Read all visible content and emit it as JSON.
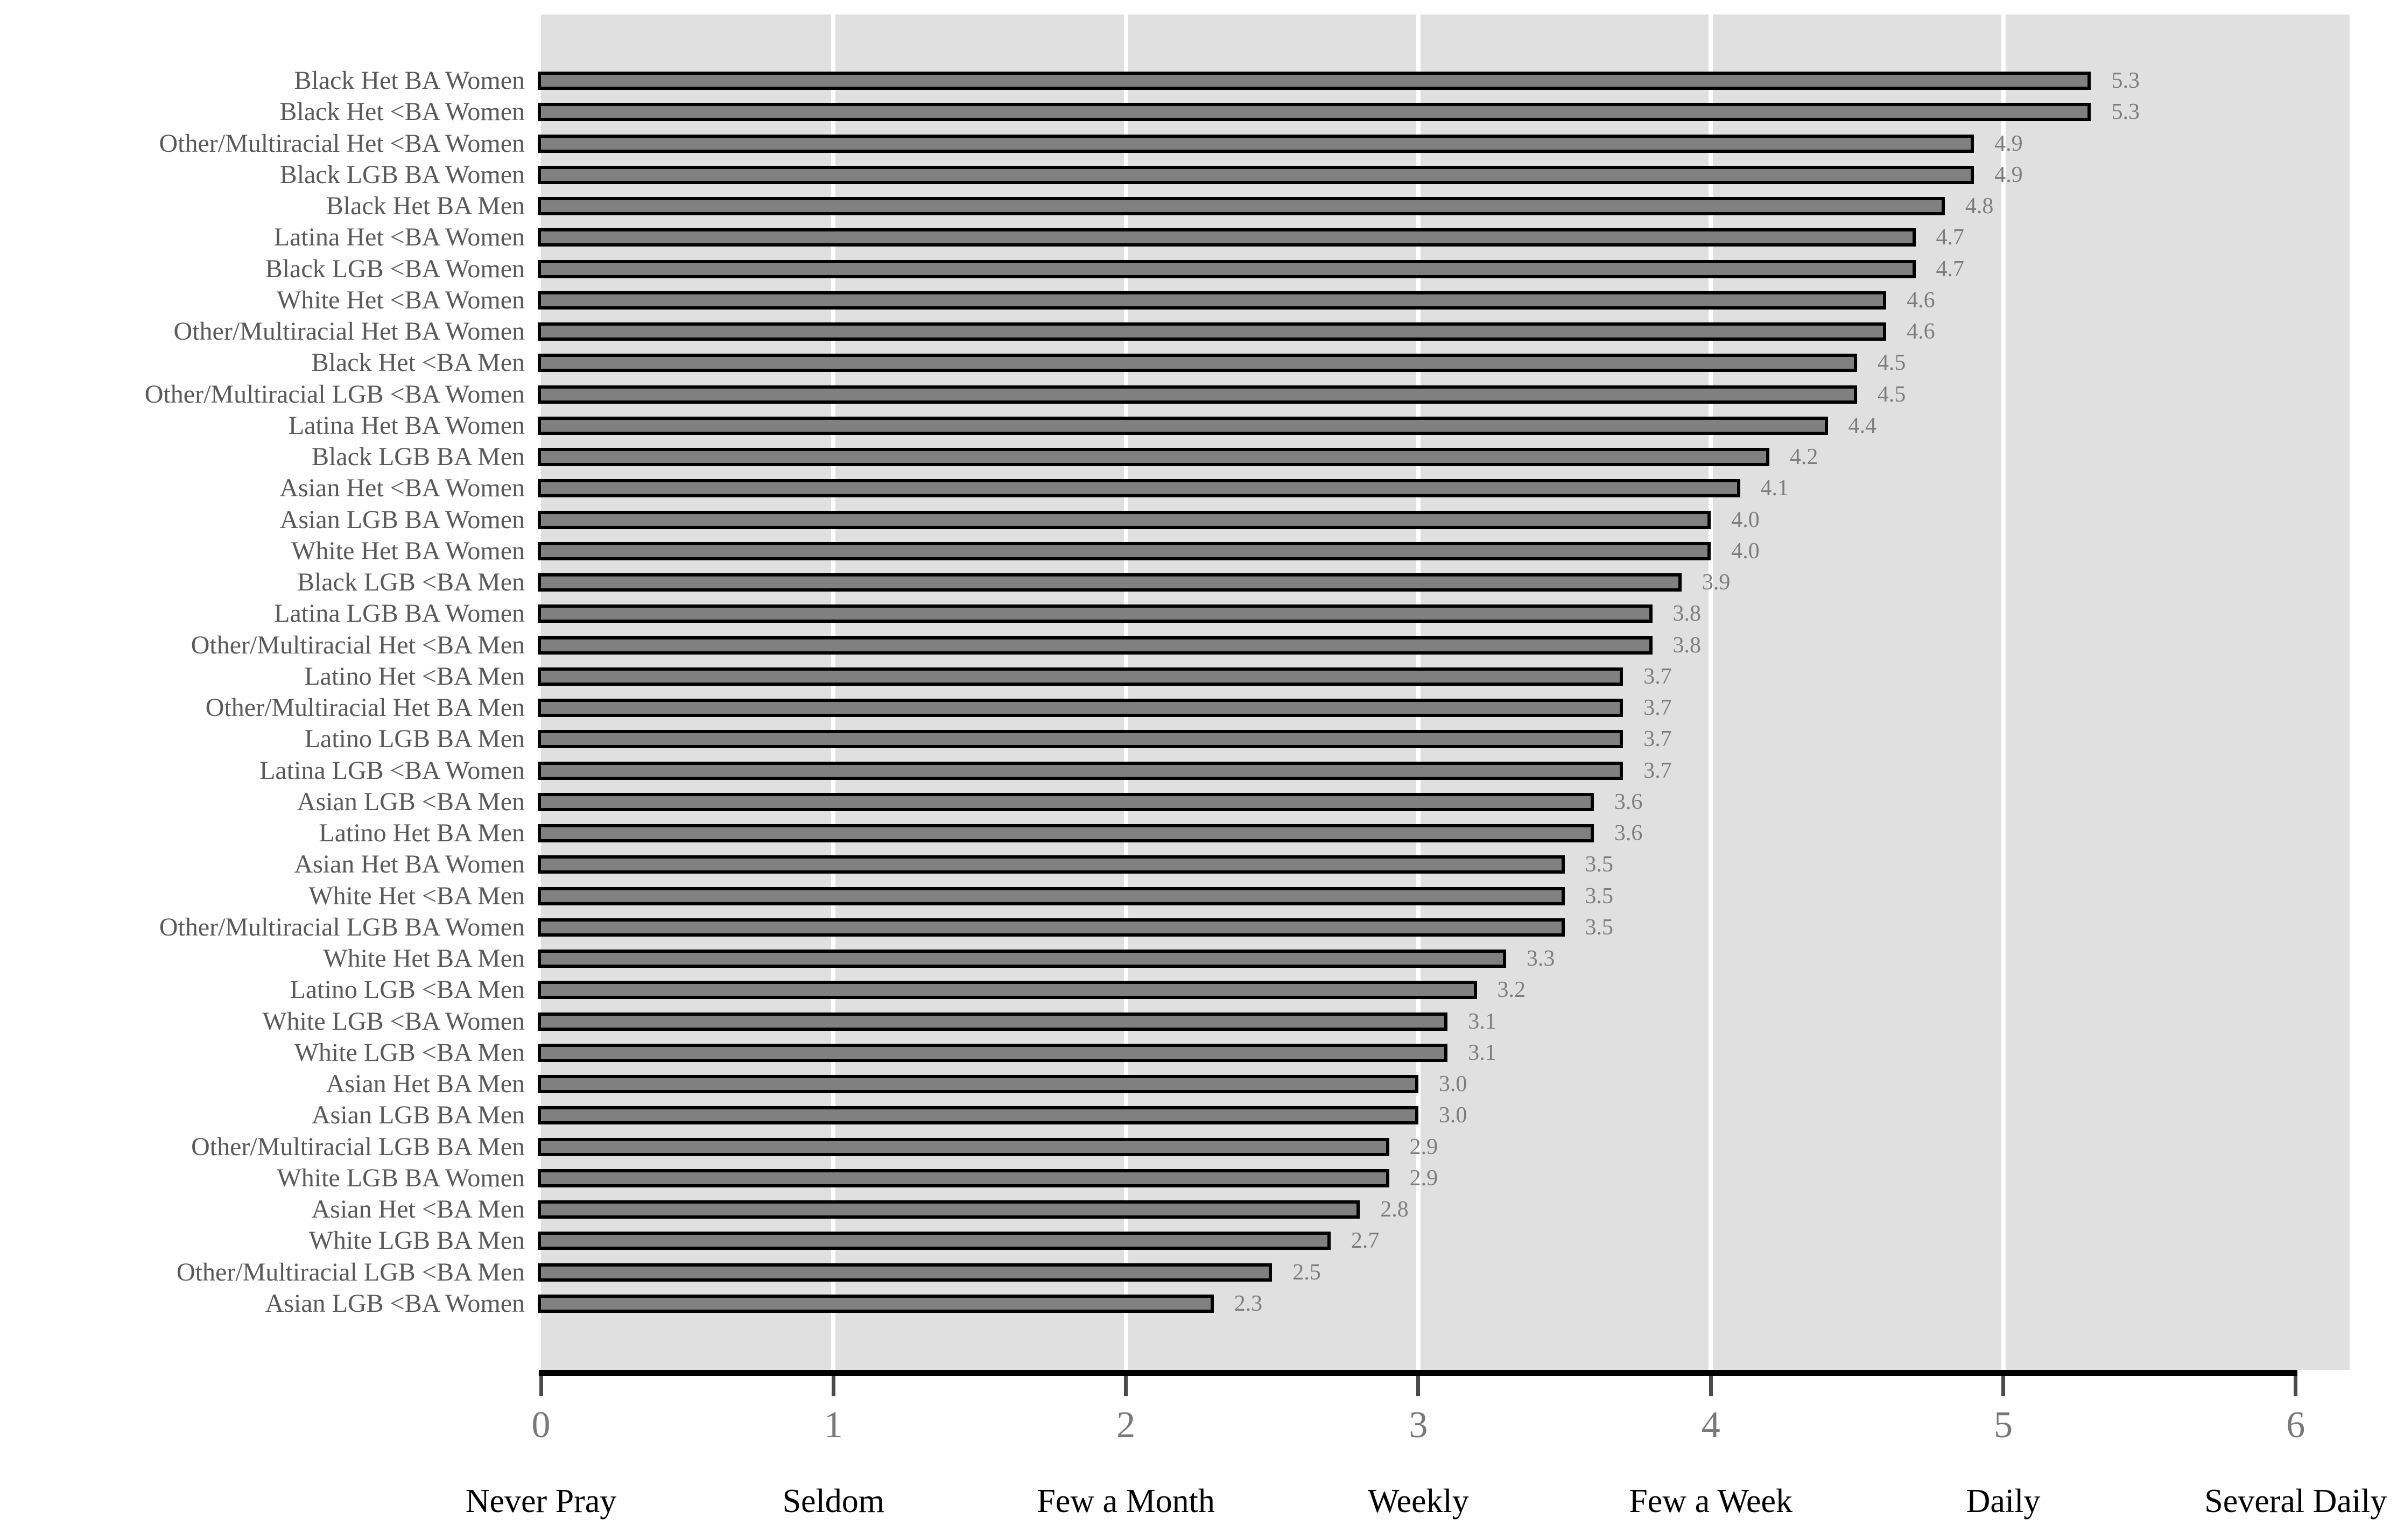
{
  "chart_data": {
    "type": "bar",
    "orientation": "horizontal",
    "title": "",
    "xlabel": "",
    "ylabel": "",
    "xlim": [
      0,
      6.19
    ],
    "grid": "vertical-white-gridlines",
    "gridlines_at": [
      1,
      2,
      3,
      4,
      5
    ],
    "categories": [
      "Black Het BA Women",
      "Black Het <BA Women",
      "Other/Multiracial Het <BA Women",
      "Black LGB BA Women",
      "Black Het BA Men",
      "Latina Het <BA Women",
      "Black LGB <BA Women",
      "White Het <BA Women",
      "Other/Multiracial Het BA Women",
      "Black Het <BA Men",
      "Other/Multiracial LGB <BA Women",
      "Latina Het BA Women",
      "Black LGB BA Men",
      "Asian Het <BA Women",
      "Asian LGB BA Women",
      "White Het BA Women",
      "Black LGB <BA Men",
      "Latina LGB BA Women",
      "Other/Multiracial Het <BA Men",
      "Latino Het <BA Men",
      "Other/Multiracial Het BA Men",
      "Latino LGB BA Men",
      "Latina LGB <BA Women",
      "Asian LGB <BA Men",
      "Latino Het BA Men",
      "Asian Het BA Women",
      "White Het <BA Men",
      "Other/Multiracial LGB BA Women",
      "White Het BA Men",
      "Latino LGB <BA Men",
      "White LGB <BA Women",
      "White LGB <BA Men",
      "Asian Het BA Men",
      "Asian LGB BA Men",
      "Other/Multiracial LGB BA Men",
      "White LGB BA Women",
      "Asian Het <BA Men",
      "White LGB BA Men",
      "Other/Multiracial LGB <BA Men",
      "Asian LGB <BA Women"
    ],
    "values": [
      5.3,
      5.3,
      4.9,
      4.9,
      4.8,
      4.7,
      4.7,
      4.6,
      4.6,
      4.5,
      4.5,
      4.4,
      4.2,
      4.1,
      4.0,
      4.0,
      3.9,
      3.8,
      3.8,
      3.7,
      3.7,
      3.7,
      3.7,
      3.6,
      3.6,
      3.5,
      3.5,
      3.5,
      3.3,
      3.2,
      3.1,
      3.1,
      3.0,
      3.0,
      2.9,
      2.9,
      2.8,
      2.7,
      2.5,
      2.3
    ],
    "value_labels": [
      "5.3",
      "5.3",
      "4.9",
      "4.9",
      "4.8",
      "4.7",
      "4.7",
      "4.6",
      "4.6",
      "4.5",
      "4.5",
      "4.4",
      "4.2",
      "4.1",
      "4.0",
      "4.0",
      "3.9",
      "3.8",
      "3.8",
      "3.7",
      "3.7",
      "3.7",
      "3.7",
      "3.6",
      "3.6",
      "3.5",
      "3.5",
      "3.5",
      "3.3",
      "3.2",
      "3.1",
      "3.1",
      "3.0",
      "3.0",
      "2.9",
      "2.9",
      "2.8",
      "2.7",
      "2.5",
      "2.3"
    ],
    "x_ticks": [
      {
        "value": 0,
        "number": "0",
        "label": "Never Pray"
      },
      {
        "value": 1,
        "number": "1",
        "label": "Seldom"
      },
      {
        "value": 2,
        "number": "2",
        "label": "Few a Month"
      },
      {
        "value": 3,
        "number": "3",
        "label": "Weekly"
      },
      {
        "value": 4,
        "number": "4",
        "label": "Few a Week"
      },
      {
        "value": 5,
        "number": "5",
        "label": "Daily"
      },
      {
        "value": 6,
        "number": "6",
        "label": "Several Daily"
      }
    ],
    "colors": {
      "page_bg": "#ffffff",
      "plot_bg": "#e0e0e0",
      "bar_fill": "#808080",
      "bar_border": "#000000",
      "gridline": "#ffffff",
      "axis_line": "#000000",
      "tick_mark": "#4a4a4a",
      "tick_number": "#787878",
      "value_label": "#7d7d7d",
      "category_label": "#595959",
      "axis_word": "#000000"
    }
  }
}
